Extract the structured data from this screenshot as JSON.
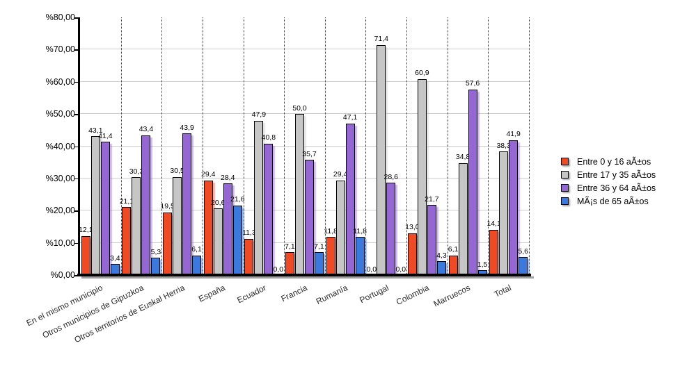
{
  "chart_data": {
    "type": "bar",
    "title": "",
    "xlabel": "",
    "ylabel": "",
    "categories": [
      "En el mismo municipio",
      "Otros municipios de Gipuzkoa",
      "Otros territorios de Euskal Herria",
      "España",
      "Ecuador",
      "Francia",
      "Rumanía",
      "Portugal",
      "Colombia",
      "Marruecos",
      "Total"
    ],
    "series": [
      {
        "name": "Entre 0 y 16 aÃ±os",
        "color": "#EE4A26",
        "values": [
          12.1,
          21.1,
          19.5,
          29.4,
          11.3,
          7.1,
          11.8,
          0.0,
          13.0,
          6.1,
          14.1
        ]
      },
      {
        "name": "Entre 17 y 35 aÃ±os",
        "color": "#C6C6C6",
        "values": [
          43.1,
          30.3,
          30.5,
          20.6,
          47.9,
          50.0,
          29.4,
          71.4,
          60.9,
          34.8,
          38.3
        ]
      },
      {
        "name": "Entre 36 y 64 aÃ±os",
        "color": "#9467D2",
        "values": [
          41.4,
          43.4,
          43.9,
          28.4,
          40.8,
          35.7,
          47.1,
          28.6,
          21.7,
          57.6,
          41.9
        ]
      },
      {
        "name": "MÃ¡s de 65 aÃ±os",
        "color": "#3B79DC",
        "values": [
          3.4,
          5.3,
          6.1,
          21.6,
          0.0,
          7.1,
          11.8,
          0.0,
          4.3,
          1.5,
          5.6
        ]
      }
    ],
    "ylim": [
      0,
      80
    ],
    "y_ticks": [
      "%80,00",
      "%70,00",
      "%60,00",
      "%50,00",
      "%40,00",
      "%30,00",
      "%20,00",
      "%10,00",
      "%0,00"
    ],
    "decimal_separator": ",",
    "grid": true,
    "group_separators": "dotted",
    "legend_position": "right",
    "background_color": "#FFFFFF",
    "axis_color": "#000000",
    "gridline_color": "#CCCCCC"
  }
}
